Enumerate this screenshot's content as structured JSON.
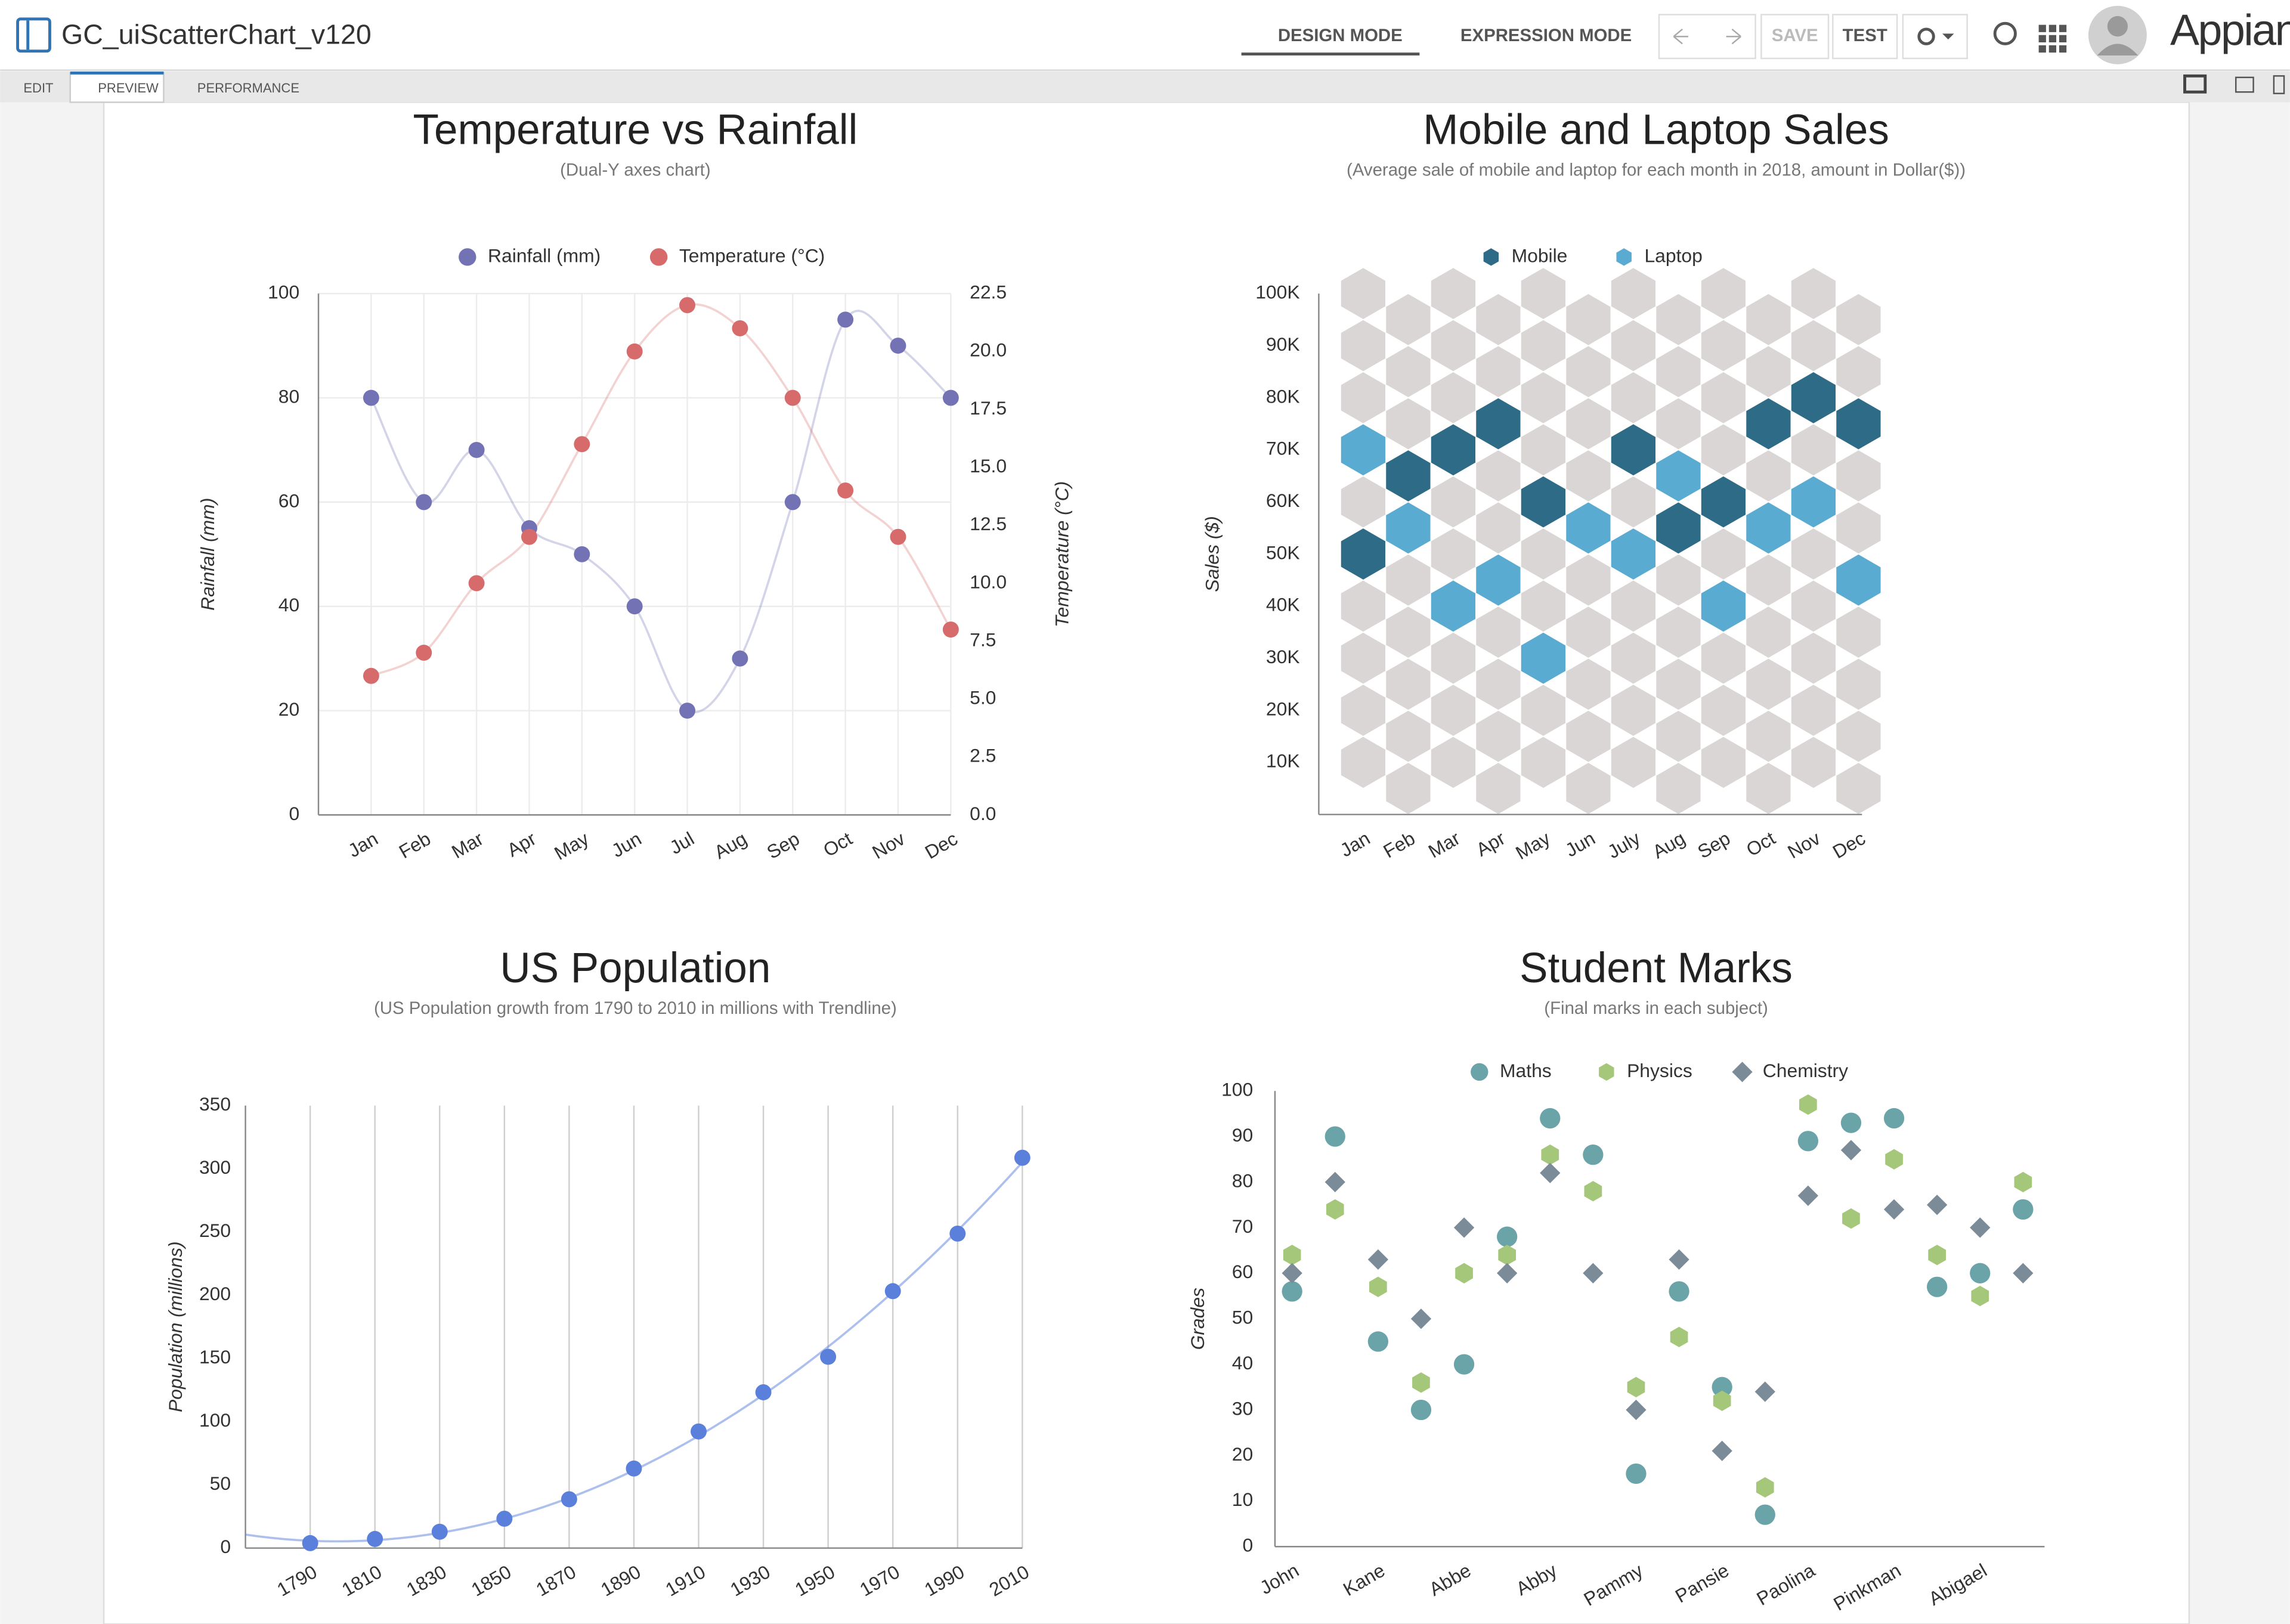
{
  "app": {
    "title": "GC_uiScatterChart_v120",
    "modes": [
      "DESIGN MODE",
      "EXPRESSION MODE"
    ],
    "buttons": [
      "SAVE",
      "TEST"
    ],
    "brand": "Appian",
    "tabs": [
      "EDIT",
      "PREVIEW",
      "PERFORMANCE"
    ]
  },
  "chart_data": [
    {
      "type": "scatter",
      "title": "Temperature vs Rainfall",
      "subtitle": "(Dual-Y axes chart)",
      "spline": true,
      "xgrid": true,
      "ygrid": true,
      "legend": "top",
      "categories": [
        "Jan",
        "Feb",
        "Mar",
        "Apr",
        "May",
        "Jun",
        "Jul",
        "Aug",
        "Sep",
        "Oct",
        "Nov",
        "Dec"
      ],
      "y_label": "Rainfall (mm)",
      "y2_label": "Temperature (°C)",
      "ylim": [
        0,
        100
      ],
      "yticks": [
        0,
        20,
        40,
        60,
        80,
        100
      ],
      "y2lim": [
        0,
        22.5
      ],
      "y2ticks": [
        {
          "value": 0,
          "label": "0.0"
        },
        2.5,
        {
          "value": 5,
          "label": "5.0"
        },
        7.5,
        {
          "value": 10,
          "label": "10.0"
        },
        12.5,
        {
          "value": 15,
          "label": "15.0"
        },
        17.5,
        {
          "value": 20,
          "label": "20.0"
        },
        22.5
      ],
      "series": [
        {
          "name": "Rainfall (mm)",
          "color": "#7272b4",
          "marker": "circle",
          "values": [
            80,
            60,
            70,
            55,
            50,
            40,
            20,
            30,
            60,
            95,
            90,
            80
          ]
        },
        {
          "name": "Temperature (°C)",
          "color": "#d76a6a",
          "marker": "circle",
          "axis": "y2",
          "values": [
            6,
            7,
            10,
            12,
            16,
            20,
            22,
            21,
            18,
            14,
            12,
            8
          ]
        }
      ]
    },
    {
      "type": "scatter",
      "title": "Mobile and Laptop Sales",
      "subtitle": "(Average sale of mobile and laptop for each month in 2018, amount in Dollar($))",
      "hexbin": true,
      "legend": "top",
      "categories": [
        "Jan",
        "Feb",
        "Mar",
        "Apr",
        "May",
        "Jun",
        "July",
        "Aug",
        "Sep",
        "Oct",
        "Nov",
        "Dec"
      ],
      "y_label": "Sales ($)",
      "ylim": [
        0,
        100000
      ],
      "yticks": [
        {
          "value": 10000,
          "label": "10K"
        },
        {
          "value": 20000,
          "label": "20K"
        },
        {
          "value": 30000,
          "label": "30K"
        },
        {
          "value": 40000,
          "label": "40K"
        },
        {
          "value": 50000,
          "label": "50K"
        },
        {
          "value": 60000,
          "label": "60K"
        },
        {
          "value": 70000,
          "label": "70K"
        },
        {
          "value": 80000,
          "label": "80K"
        },
        {
          "value": 90000,
          "label": "90K"
        },
        {
          "value": 100000,
          "label": "100K"
        }
      ],
      "series": [
        {
          "name": "Mobile",
          "color": "#2e6b86",
          "marker": "hexagon",
          "values": [
            50000,
            65000,
            70000,
            75000,
            60000,
            null,
            70000,
            55000,
            60000,
            75000,
            80000,
            75000
          ]
        },
        {
          "name": "Laptop",
          "color": "#5aabd2",
          "marker": "hexagon",
          "values": [
            70000,
            55000,
            40000,
            45000,
            30000,
            55000,
            50000,
            65000,
            40000,
            55000,
            60000,
            45000
          ]
        }
      ]
    },
    {
      "type": "scatter",
      "title": "US Population",
      "subtitle": "(US Population growth from 1790 to 2010 in millions with Trendline)",
      "trendline": true,
      "xgrid": true,
      "y_label": "Population (millions)",
      "x": [
        1790,
        1810,
        1830,
        1850,
        1870,
        1890,
        1910,
        1930,
        1950,
        1970,
        1990,
        2010
      ],
      "xlim": [
        1770,
        2010
      ],
      "xticks": [
        1790,
        1810,
        1830,
        1850,
        1870,
        1890,
        1910,
        1930,
        1950,
        1970,
        1990,
        2010
      ],
      "ylim": [
        0,
        350
      ],
      "yticks": [
        0,
        50,
        100,
        150,
        200,
        250,
        300,
        350
      ],
      "color": "#5b80dc",
      "values": [
        3.9,
        7.2,
        12.9,
        23.2,
        38.6,
        62.9,
        92.2,
        123.2,
        151.3,
        203.2,
        248.7,
        308.7
      ]
    },
    {
      "type": "scatter",
      "title": "Student Marks",
      "subtitle": "(Final marks in each subject)",
      "legend": "top",
      "categories": [
        "John",
        null,
        "Kane",
        null,
        "Abbe",
        null,
        "Abby",
        null,
        "Pammy",
        null,
        "Pansie",
        null,
        "Paolina",
        null,
        "Pinkman",
        null,
        "Abigael",
        null
      ],
      "y_label": "Grades",
      "ylim": [
        0,
        100
      ],
      "yticks": [
        0,
        10,
        20,
        30,
        40,
        50,
        60,
        70,
        80,
        90,
        100
      ],
      "series": [
        {
          "name": "Maths",
          "color": "#6aa4a9",
          "marker": "circle",
          "values": [
            56,
            90,
            45,
            30,
            40,
            68,
            94,
            86,
            16,
            56,
            35,
            7,
            89,
            93,
            94,
            57,
            60,
            74
          ]
        },
        {
          "name": "Physics",
          "color": "#a5c77a",
          "marker": "hexagon",
          "values": [
            64,
            74,
            57,
            36,
            60,
            64,
            86,
            78,
            35,
            46,
            32,
            13,
            97,
            72,
            85,
            64,
            55,
            80
          ]
        },
        {
          "name": "Chemistry",
          "color": "#7b8c98",
          "marker": "diamond",
          "values": [
            60,
            80,
            63,
            50,
            70,
            60,
            82,
            60,
            30,
            63,
            21,
            34,
            77,
            87,
            74,
            75,
            70,
            60
          ]
        }
      ]
    }
  ]
}
